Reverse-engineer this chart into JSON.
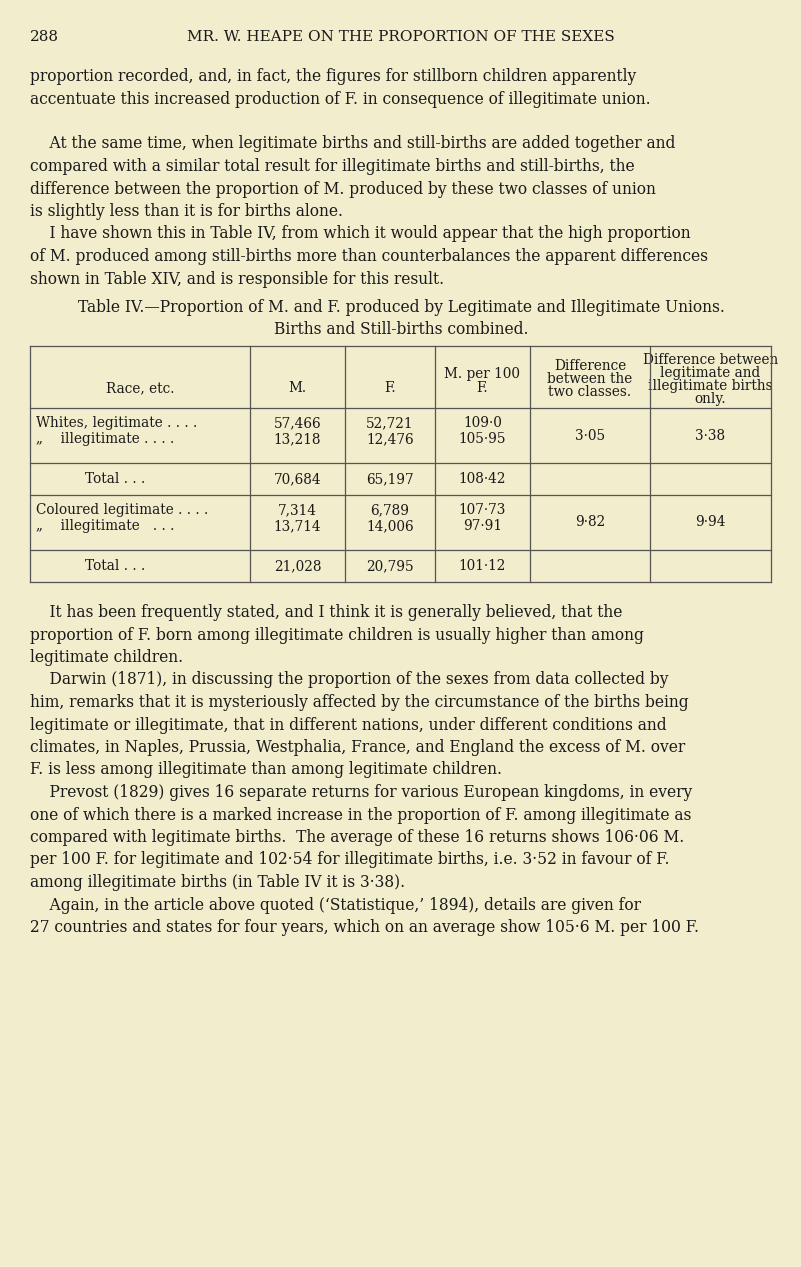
{
  "bg_color": "#f2edcc",
  "text_color": "#1a1a1a",
  "page_number": "288",
  "header": "MR. W. HEAPE ON THE PROPORTION OF THE SEXES",
  "body_lines": [
    [
      "proportion recorded, and,  in  fact,  the  figures  for  stillborn  children  apparently",
      false
    ],
    [
      "accentuate this increased production of F. in consequence of illegitimate union.",
      false
    ],
    [
      "",
      false
    ],
    [
      "    At the same time, when legitimate births and still-births are added together and",
      false
    ],
    [
      "compared  with  a  similar  total  result  for  illegitimate  births  and  still-births,  the",
      false
    ],
    [
      "difference between the proportion of M. produced by these two classes of union",
      false
    ],
    [
      "is slightly less than it is for births alone.",
      false
    ],
    [
      "    I have shown this in Table IV, from which it would appear that the high proportion",
      false
    ],
    [
      "of M. produced among still-births more than  counterbalances the apparent differences",
      false
    ],
    [
      "shown in Table XIV, and is responsible for this result.",
      false
    ]
  ],
  "table_title_line1": "Table IV.—Proportion of M. and F. produced by Legitimate and Illegitimate Unions.",
  "table_title_line2": "Births and Still-births combined.",
  "post_table_lines": [
    "    It has been frequently stated, and I think it is generally believed, that the",
    "proportion of F. born among illegitimate children is usually higher than among",
    "legitimate children.",
    "    Darwin (1871), in discussing the proportion of the sexes from data collected by",
    "him, remarks that it is mysteriously affected by the circumstance of the births being",
    "legitimate or illegitimate, that in different nations, under different conditions and",
    "climates, in Naples, Prussia, Westphalia, France, and England the excess of M. over",
    "F. is less among illegitimate than among legitimate children.",
    "    Prevost (1829) gives 16 separate returns for various European kingdoms, in every",
    "one of which there is a marked increase in the proportion of F. among illegitimate as",
    "compared with legitimate births.  The average of these 16 returns shows 106·06 M.",
    "per 100 F. for legitimate and 102·54 for illegitimate births, i.e. 3·52 in favour of F.",
    "among illegitimate births (in Table IV it is 3·38).",
    "    Again, in the article above quoted (‘Statistique,’ 1894), details are given for",
    "27 countries and states for four years, which on an average show 105·6 M. per 100 F."
  ]
}
